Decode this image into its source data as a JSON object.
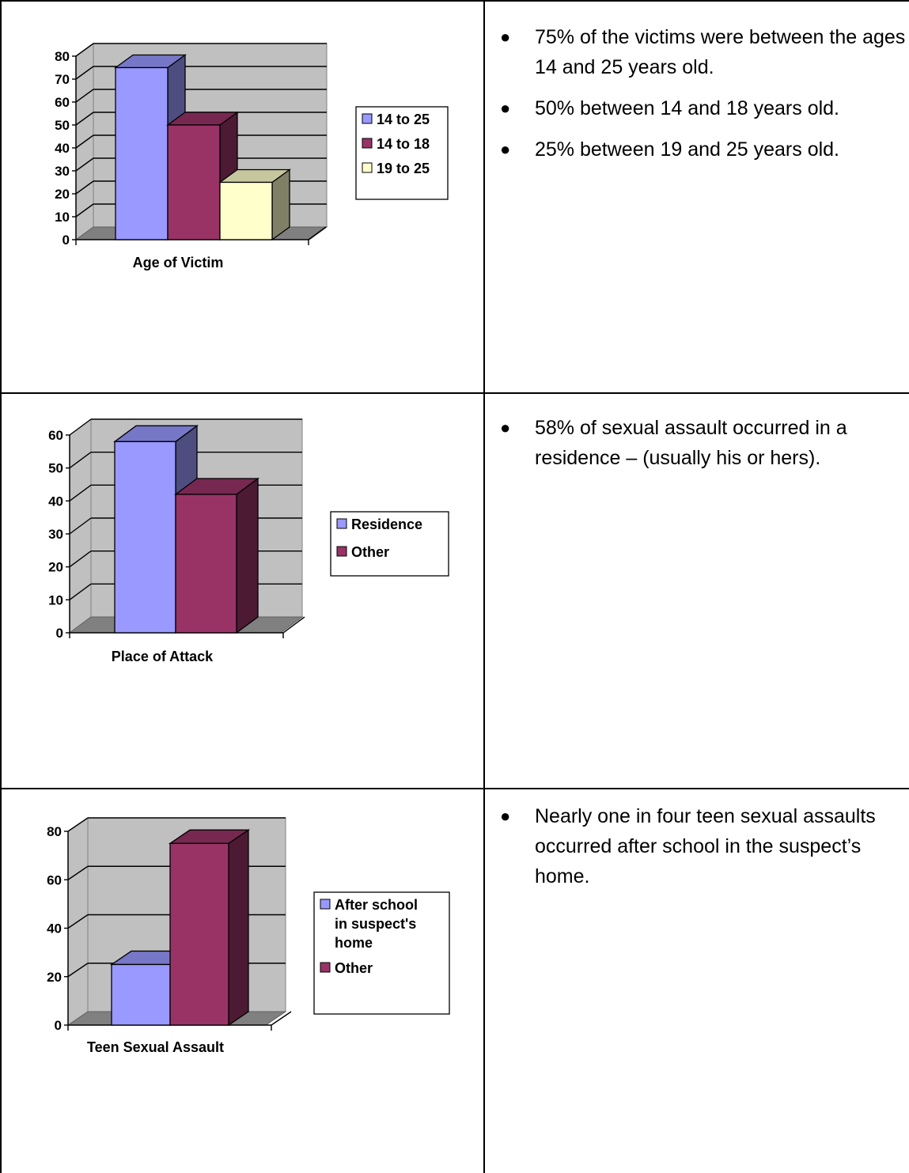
{
  "rows": [
    {
      "bullets": [
        "75% of the victims were between the ages 14 and 25 years old.",
        "50% between 14 and 18 years old.",
        "25% between 19 and 25 years old."
      ]
    },
    {
      "bullets": [
        "58% of sexual assault occurred in a residence – (usually his or hers)."
      ]
    },
    {
      "bullets": [
        "Nearly one in four teen sexual assaults occurred after school in the suspect’s home."
      ]
    }
  ],
  "chart_data": [
    {
      "type": "bar",
      "xlabel": "Age of Victim",
      "ylim": [
        0,
        80
      ],
      "yticks": [
        0,
        10,
        20,
        30,
        40,
        50,
        60,
        70,
        80
      ],
      "series": [
        {
          "name": "14 to 25",
          "values": [
            75
          ],
          "color": "#9999FF"
        },
        {
          "name": "14 to 18",
          "values": [
            50
          ],
          "color": "#993366"
        },
        {
          "name": "19 to 25",
          "values": [
            25
          ],
          "color": "#FFFFCC"
        }
      ],
      "legend": "right",
      "grid": true
    },
    {
      "type": "bar",
      "xlabel": "Place of Attack",
      "ylim": [
        0,
        60
      ],
      "yticks": [
        0,
        10,
        20,
        30,
        40,
        50,
        60
      ],
      "series": [
        {
          "name": "Residence",
          "values": [
            58
          ],
          "color": "#9999FF"
        },
        {
          "name": "Other",
          "values": [
            42
          ],
          "color": "#993366"
        }
      ],
      "legend": "right",
      "grid": true
    },
    {
      "type": "bar",
      "xlabel": "Teen Sexual Assault",
      "ylim": [
        0,
        80
      ],
      "yticks": [
        0,
        20,
        40,
        60,
        80
      ],
      "series": [
        {
          "name": "After school in suspect's home",
          "legend_lines": [
            "After school",
            "in suspect's",
            "home"
          ],
          "values": [
            25
          ],
          "color": "#9999FF"
        },
        {
          "name": "Other",
          "values": [
            75
          ],
          "color": "#993366"
        }
      ],
      "legend": "right",
      "grid": true
    }
  ]
}
